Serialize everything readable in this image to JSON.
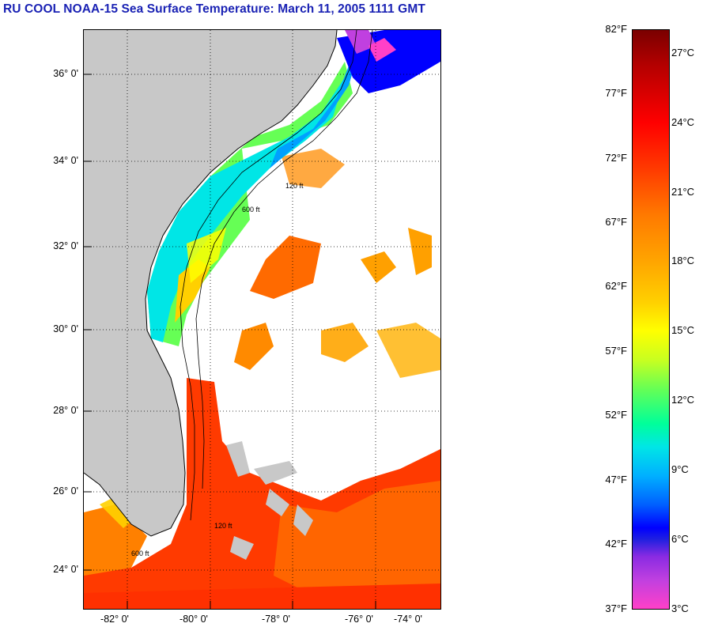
{
  "title": "RU COOL  NOAA-15  Sea Surface Temperature:  March 11, 2005 1111 GMT",
  "map": {
    "lat_labels": [
      "36° 0'",
      "34° 0'",
      "32° 0'",
      "30° 0'",
      "28° 0'",
      "26° 0'",
      "24° 0'"
    ],
    "lon_labels": [
      "-82° 0'",
      "-80° 0'",
      "-78° 0'",
      "-76° 0'",
      "-74° 0'"
    ],
    "contour_labels": [
      "120 ft",
      "600 ft"
    ],
    "colors": {
      "land": "#c8c8c8",
      "cloud": "#ffffff",
      "gulf_stream": "#ff4000",
      "shelf_warm": "#ffa000",
      "shelf_cool": "#00e0e0"
    }
  },
  "colorbar": {
    "fahrenheit": [
      "82°F",
      "77°F",
      "72°F",
      "67°F",
      "62°F",
      "57°F",
      "52°F",
      "47°F",
      "42°F",
      "37°F"
    ],
    "celsius": [
      "27°C",
      "24°C",
      "21°C",
      "18°C",
      "15°C",
      "12°C",
      "9°C",
      "6°C",
      "3°C"
    ]
  }
}
